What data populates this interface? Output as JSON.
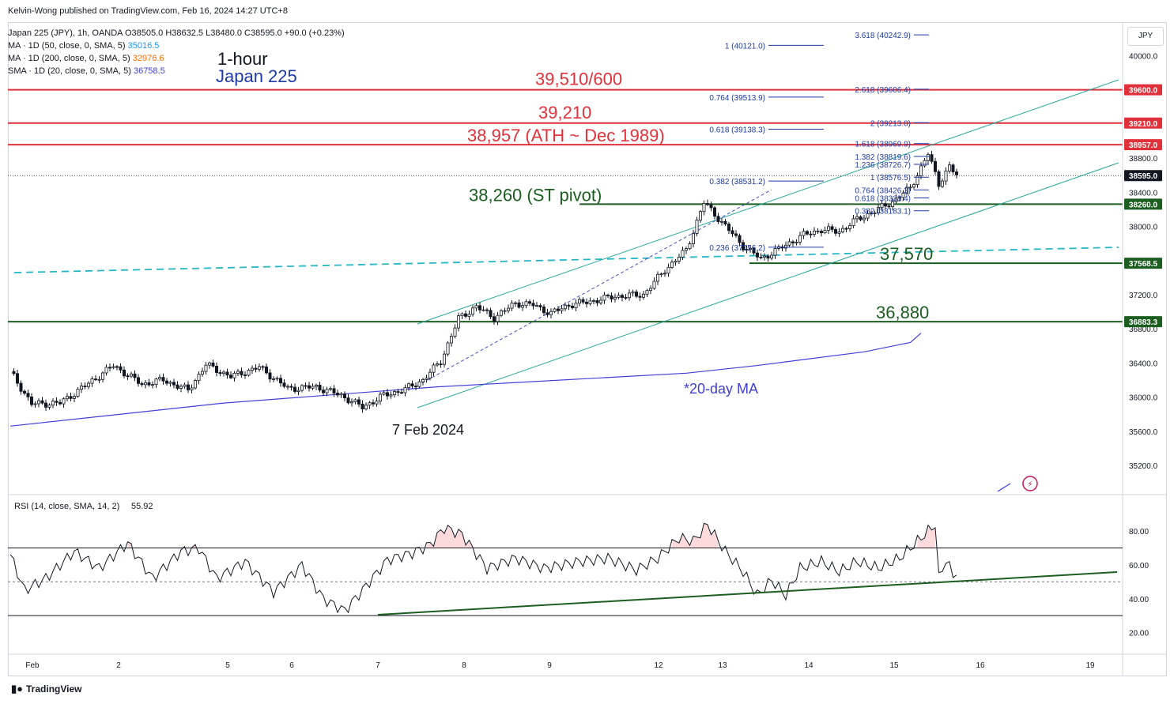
{
  "header": {
    "published": "Kelvin-Wong published on TradingView.com, Feb 16, 2024 14:27 UTC+8",
    "symbol_line": "Japan 225 (JPY), 1h, OANDA  O38505.0  H38632.5  L38480.0  C38595.0  +90.0 (+0.23%)",
    "ma50": {
      "label": "MA · 1D (50, close, 0, SMA, 5)",
      "value": "35016.5",
      "color": "#2196f3"
    },
    "ma200": {
      "label": "MA · 1D (200, close, 0, SMA, 5)",
      "value": "32976.6",
      "color": "#ff6d00"
    },
    "sma20": {
      "label": "SMA · 1D (20, close, 0, SMA, 5)",
      "value": "36758.5",
      "color": "#3f3fd8"
    },
    "currency": "JPY"
  },
  "chart_data": {
    "type": "candlestick",
    "title_line1": "1-hour",
    "title_line2": "Japan 225",
    "price_axis": {
      "min": 34950,
      "max": 40300,
      "ticks": [
        35200,
        35600,
        36000,
        36400,
        36800,
        37200,
        37600,
        38000,
        38400,
        38800,
        39200,
        39600,
        40000
      ]
    },
    "time_ticks": [
      "Feb",
      "2",
      "5",
      "6",
      "7",
      "8",
      "9",
      "12",
      "13",
      "14",
      "15",
      "16",
      "19"
    ],
    "last_price": {
      "value": 38595.0,
      "label": "38595.0"
    },
    "horizontal_levels": [
      {
        "price": 39600,
        "axis_label": "39600.0",
        "text": "39,510/600",
        "color": "#e0313b"
      },
      {
        "price": 39210,
        "axis_label": "39210.0",
        "text": "39,210",
        "color": "#e0313b"
      },
      {
        "price": 38957,
        "axis_label": "38957.0",
        "text": "38,957 (ATH ~ Dec 1989)",
        "color": "#e0313b"
      },
      {
        "price": 38260,
        "axis_label": "38260.0",
        "text": "38,260 (ST pivot)",
        "color": "#1b5e20"
      },
      {
        "price": 37568.5,
        "axis_label": "37568.5",
        "text": "37,570",
        "color": "#1b5e20"
      },
      {
        "price": 36883.3,
        "axis_label": "36883.3",
        "text": "36,880",
        "color": "#1b5e20"
      }
    ],
    "fib_extension_upper": [
      {
        "label": "1 (40121.0)",
        "price": 40121.0
      },
      {
        "label": "0.764 (39513.9)",
        "price": 39513.9
      },
      {
        "label": "0.618 (39138.3)",
        "price": 39138.3
      },
      {
        "label": "0.382 (38531.2)",
        "price": 38531.2
      },
      {
        "label": "0.236 (37756.2)",
        "price": 37756.2
      }
    ],
    "fib_extension_lower": [
      {
        "label": "3.618 (40242.9)",
        "price": 40242.9
      },
      {
        "label": "2.618 (39606.4)",
        "price": 39606.4
      },
      {
        "label": "2 (39213.0)",
        "price": 39213.0
      },
      {
        "label": "1.618 (38969.9)",
        "price": 38969.9
      },
      {
        "label": "1.382 (38819.6)",
        "price": 38819.6
      },
      {
        "label": "1.236 (38726.7)",
        "price": 38726.7
      },
      {
        "label": "1 (38576.5)",
        "price": 38576.5
      },
      {
        "label": "0.764 (38426.3)",
        "price": 38426.3
      },
      {
        "label": "0.618 (38333.4)",
        "price": 38333.4
      },
      {
        "label": "0.382 (38183.1)",
        "price": 38183.1
      }
    ],
    "annotations": {
      "low_date": "7 Feb 2024",
      "ma_label": "*20-day MA"
    },
    "candle_anchors": [
      {
        "i": 0,
        "p": 36300
      },
      {
        "i": 6,
        "p": 35920
      },
      {
        "i": 14,
        "p": 35930
      },
      {
        "i": 22,
        "p": 36160
      },
      {
        "i": 29,
        "p": 36370
      },
      {
        "i": 37,
        "p": 36150
      },
      {
        "i": 43,
        "p": 36200
      },
      {
        "i": 50,
        "p": 36080
      },
      {
        "i": 55,
        "p": 36380
      },
      {
        "i": 62,
        "p": 36240
      },
      {
        "i": 70,
        "p": 36350
      },
      {
        "i": 78,
        "p": 36100
      },
      {
        "i": 86,
        "p": 36120
      },
      {
        "i": 93,
        "p": 36020
      },
      {
        "i": 99,
        "p": 35880
      },
      {
        "i": 105,
        "p": 36020
      },
      {
        "i": 111,
        "p": 36090
      },
      {
        "i": 116,
        "p": 36200
      },
      {
        "i": 121,
        "p": 36420
      },
      {
        "i": 126,
        "p": 36920
      },
      {
        "i": 131,
        "p": 37060
      },
      {
        "i": 136,
        "p": 36930
      },
      {
        "i": 142,
        "p": 37100
      },
      {
        "i": 147,
        "p": 37080
      },
      {
        "i": 152,
        "p": 36980
      },
      {
        "i": 157,
        "p": 37080
      },
      {
        "i": 163,
        "p": 37120
      },
      {
        "i": 170,
        "p": 37180
      },
      {
        "i": 178,
        "p": 37200
      },
      {
        "i": 184,
        "p": 37490
      },
      {
        "i": 190,
        "p": 37720
      },
      {
        "i": 195,
        "p": 38280
      },
      {
        "i": 200,
        "p": 38050
      },
      {
        "i": 206,
        "p": 37770
      },
      {
        "i": 211,
        "p": 37620
      },
      {
        "i": 218,
        "p": 37780
      },
      {
        "i": 223,
        "p": 37900
      },
      {
        "i": 228,
        "p": 37960
      },
      {
        "i": 233,
        "p": 37940
      },
      {
        "i": 238,
        "p": 38080
      },
      {
        "i": 243,
        "p": 38180
      },
      {
        "i": 248,
        "p": 38290
      },
      {
        "i": 253,
        "p": 38450
      },
      {
        "i": 258,
        "p": 38850
      },
      {
        "i": 261,
        "p": 38500
      },
      {
        "i": 264,
        "p": 38700
      },
      {
        "i": 266,
        "p": 38595
      }
    ],
    "sma20_path": [
      {
        "i": 0,
        "p": 35660
      },
      {
        "i": 60,
        "p": 35930
      },
      {
        "i": 120,
        "p": 36120
      },
      {
        "i": 190,
        "p": 36280
      },
      {
        "i": 210,
        "p": 36370
      },
      {
        "i": 240,
        "p": 36530
      },
      {
        "i": 253,
        "p": 36640
      },
      {
        "i": 256,
        "p": 36750
      }
    ],
    "rsi": {
      "label": "RSI (14, close, SMA, 14, 2)",
      "value": "55.92",
      "ylim": [
        10,
        95
      ],
      "ticks": [
        20,
        40,
        60,
        80
      ],
      "overbought": 70,
      "oversold": 30,
      "midline": 50,
      "anchors": [
        {
          "i": 0,
          "p": 66
        },
        {
          "i": 4,
          "p": 45
        },
        {
          "i": 10,
          "p": 52
        },
        {
          "i": 18,
          "p": 68
        },
        {
          "i": 25,
          "p": 58
        },
        {
          "i": 33,
          "p": 73
        },
        {
          "i": 40,
          "p": 52
        },
        {
          "i": 48,
          "p": 68
        },
        {
          "i": 53,
          "p": 70
        },
        {
          "i": 58,
          "p": 52
        },
        {
          "i": 66,
          "p": 62
        },
        {
          "i": 74,
          "p": 44
        },
        {
          "i": 82,
          "p": 60
        },
        {
          "i": 88,
          "p": 40
        },
        {
          "i": 94,
          "p": 33
        },
        {
          "i": 99,
          "p": 45
        },
        {
          "i": 106,
          "p": 63
        },
        {
          "i": 113,
          "p": 67
        },
        {
          "i": 118,
          "p": 72
        },
        {
          "i": 122,
          "p": 82
        },
        {
          "i": 127,
          "p": 78
        },
        {
          "i": 134,
          "p": 58
        },
        {
          "i": 142,
          "p": 64
        },
        {
          "i": 150,
          "p": 58
        },
        {
          "i": 160,
          "p": 62
        },
        {
          "i": 168,
          "p": 64
        },
        {
          "i": 176,
          "p": 57
        },
        {
          "i": 182,
          "p": 64
        },
        {
          "i": 188,
          "p": 76
        },
        {
          "i": 192,
          "p": 74
        },
        {
          "i": 196,
          "p": 84
        },
        {
          "i": 201,
          "p": 68
        },
        {
          "i": 206,
          "p": 56
        },
        {
          "i": 210,
          "p": 42
        },
        {
          "i": 214,
          "p": 51
        },
        {
          "i": 218,
          "p": 42
        },
        {
          "i": 222,
          "p": 58
        },
        {
          "i": 228,
          "p": 62
        },
        {
          "i": 233,
          "p": 56
        },
        {
          "i": 238,
          "p": 62
        },
        {
          "i": 244,
          "p": 58
        },
        {
          "i": 250,
          "p": 64
        },
        {
          "i": 256,
          "p": 76
        },
        {
          "i": 260,
          "p": 84
        },
        {
          "i": 261,
          "p": 52
        },
        {
          "i": 263,
          "p": 63
        },
        {
          "i": 265,
          "p": 54
        },
        {
          "i": 266,
          "p": 56
        }
      ]
    }
  },
  "footer": {
    "brand": "TradingView"
  }
}
